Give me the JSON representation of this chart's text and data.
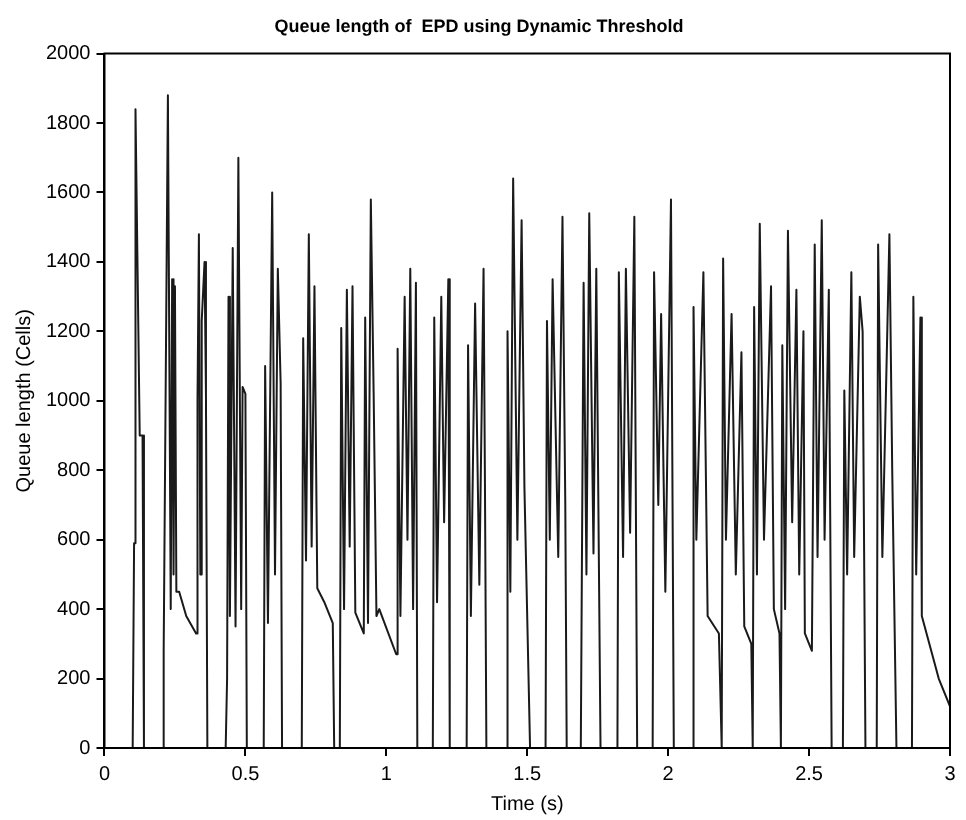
{
  "chart_data": {
    "type": "line",
    "title": "Queue length of  EPD using Dynamic Threshold",
    "xlabel": "Time (s)",
    "ylabel": "Queue length (Cells)",
    "xlim": [
      0,
      3
    ],
    "xticks": [
      0,
      0.5,
      1,
      1.5,
      2,
      2.5,
      3
    ],
    "ylim": [
      0,
      2000
    ],
    "yticks": [
      0,
      200,
      400,
      600,
      800,
      1000,
      1200,
      1400,
      1600,
      1800,
      2000
    ],
    "grid": false,
    "legend": false,
    "marker": "none",
    "line_style": "solid",
    "x": [
      0,
      0.1,
      0.105,
      0.11,
      0.125,
      0.135,
      0.14,
      0.205,
      0.21,
      0.225,
      0.235,
      0.24,
      0.245,
      0.25,
      0.255,
      0.265,
      0.29,
      0.325,
      0.33,
      0.335,
      0.34,
      0.345,
      0.355,
      0.36,
      0.365,
      0.43,
      0.435,
      0.44,
      0.445,
      0.455,
      0.465,
      0.475,
      0.485,
      0.49,
      0.5,
      0.505,
      0.565,
      0.57,
      0.58,
      0.595,
      0.605,
      0.615,
      0.625,
      0.63,
      0.7,
      0.705,
      0.715,
      0.725,
      0.735,
      0.745,
      0.755,
      0.78,
      0.81,
      0.815,
      0.835,
      0.84,
      0.85,
      0.86,
      0.87,
      0.88,
      0.89,
      0.92,
      0.925,
      0.935,
      0.945,
      0.955,
      0.965,
      0.975,
      1.035,
      1.04,
      1.05,
      1.065,
      1.075,
      1.085,
      1.095,
      1.105,
      1.11,
      1.165,
      1.17,
      1.18,
      1.195,
      1.205,
      1.22,
      1.225,
      1.285,
      1.29,
      1.3,
      1.315,
      1.33,
      1.345,
      1.35,
      1.355,
      1.425,
      1.43,
      1.44,
      1.45,
      1.465,
      1.48,
      1.49,
      1.51,
      1.565,
      1.57,
      1.58,
      1.59,
      1.61,
      1.625,
      1.635,
      1.64,
      1.69,
      1.7,
      1.71,
      1.72,
      1.735,
      1.745,
      1.76,
      1.82,
      1.825,
      1.84,
      1.85,
      1.865,
      1.88,
      1.89,
      1.945,
      1.95,
      1.965,
      1.975,
      1.99,
      2.01,
      2.02,
      2.085,
      2.09,
      2.1,
      2.125,
      2.14,
      2.18,
      2.19,
      2.195,
      2.205,
      2.225,
      2.24,
      2.26,
      2.27,
      2.295,
      2.3,
      2.305,
      2.315,
      2.325,
      2.34,
      2.365,
      2.375,
      2.395,
      2.4,
      2.405,
      2.415,
      2.425,
      2.44,
      2.455,
      2.465,
      2.48,
      2.485,
      2.51,
      2.52,
      2.53,
      2.545,
      2.555,
      2.57,
      2.58,
      2.62,
      2.625,
      2.635,
      2.65,
      2.66,
      2.68,
      2.69,
      2.7,
      2.74,
      2.745,
      2.76,
      2.785,
      2.795,
      2.81,
      2.865,
      2.87,
      2.88,
      2.895,
      2.9,
      2.96,
      3
    ],
    "series": [
      {
        "color": "#1a1a1a",
        "values": [
          0,
          0,
          590,
          1840,
          900,
          900,
          0,
          0,
          280,
          1880,
          400,
          1350,
          500,
          1330,
          450,
          450,
          380,
          330,
          1000,
          1480,
          500,
          1230,
          1400,
          1020,
          0,
          0,
          200,
          1300,
          380,
          1440,
          350,
          1700,
          400,
          1040,
          1020,
          0,
          0,
          1100,
          360,
          1600,
          500,
          1380,
          1050,
          0,
          0,
          1180,
          540,
          1480,
          580,
          1330,
          460,
          420,
          360,
          0,
          0,
          1210,
          400,
          1320,
          580,
          1330,
          390,
          330,
          1240,
          360,
          1580,
          1020,
          380,
          400,
          270,
          1150,
          380,
          1300,
          600,
          1380,
          400,
          1340,
          0,
          0,
          1240,
          420,
          1300,
          650,
          1350,
          0,
          0,
          1160,
          380,
          1280,
          470,
          1380,
          750,
          0,
          0,
          1200,
          450,
          1640,
          600,
          1520,
          750,
          0,
          0,
          1230,
          600,
          1350,
          550,
          1530,
          700,
          0,
          0,
          1340,
          500,
          1540,
          560,
          1380,
          0,
          0,
          1370,
          550,
          1380,
          620,
          1530,
          0,
          0,
          1370,
          700,
          1250,
          450,
          1580,
          0,
          0,
          1270,
          600,
          1370,
          380,
          330,
          0,
          1410,
          600,
          1250,
          500,
          1140,
          350,
          300,
          0,
          1270,
          500,
          1510,
          600,
          1330,
          400,
          330,
          0,
          1160,
          400,
          1490,
          650,
          1320,
          500,
          1200,
          330,
          280,
          1450,
          550,
          1520,
          600,
          1320,
          0,
          0,
          1030,
          500,
          1370,
          550,
          1300,
          1200,
          0,
          0,
          1450,
          550,
          1480,
          800,
          0,
          0,
          1300,
          500,
          1240,
          380,
          200,
          120
        ]
      }
    ]
  }
}
